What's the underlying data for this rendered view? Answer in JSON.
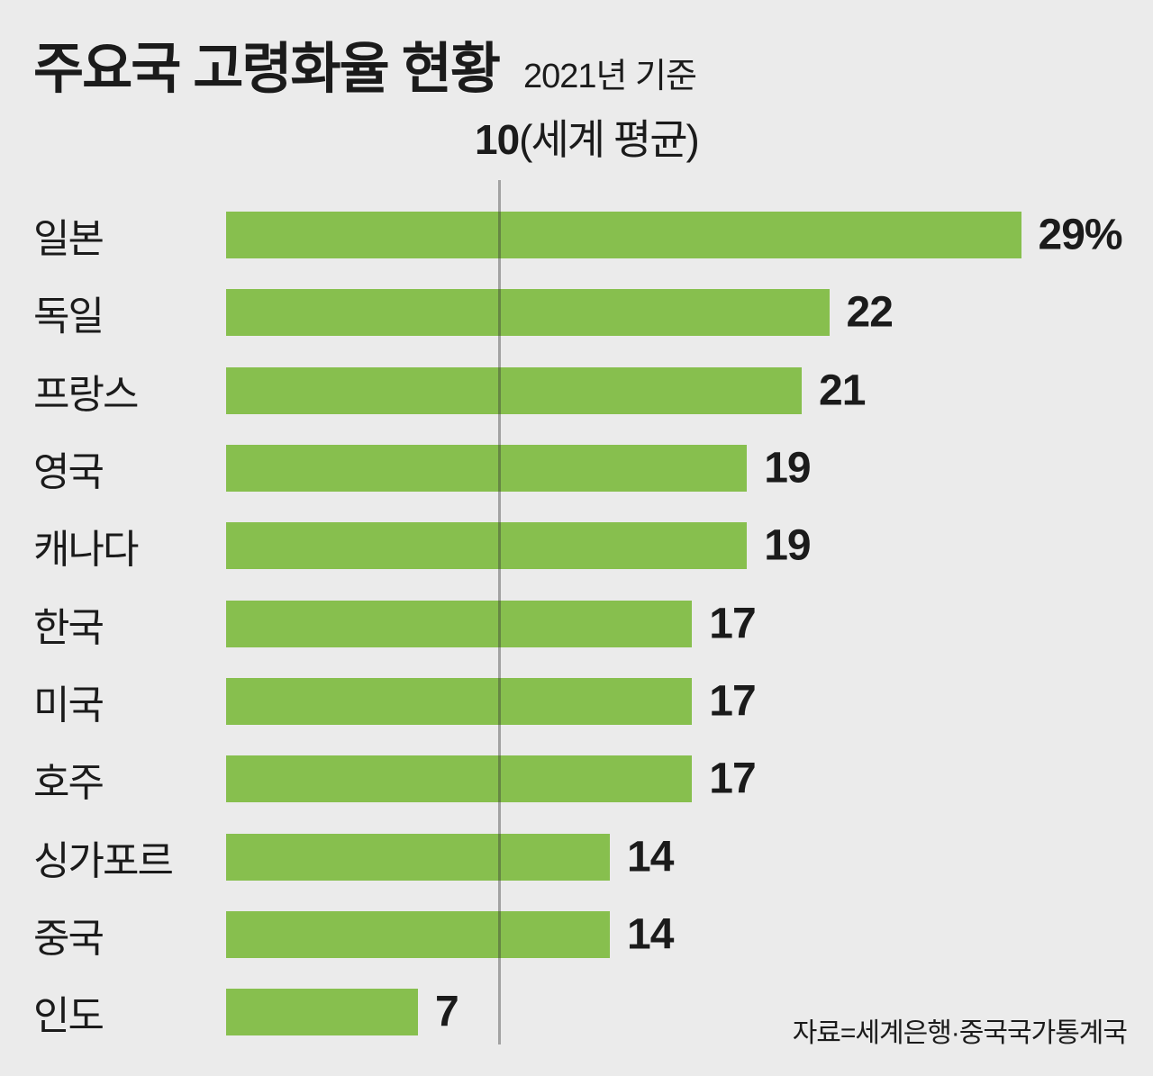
{
  "header": {
    "title": "주요국 고령화율 현황",
    "subtitle": "2021년 기준"
  },
  "average_marker": {
    "value_label": "10",
    "caption": "(세계 평균)"
  },
  "source": {
    "text": "자료=세계은행·중국국가통계국"
  },
  "colors": {
    "background": "#ebebeb",
    "bar_green": "#87bf4e",
    "text": "#1b1b1b",
    "reference_line_on_bg": "#9d9d9d"
  },
  "chart_data": {
    "type": "bar",
    "orientation": "horizontal",
    "title": "주요국 고령화율 현황",
    "subtitle": "2021년 기준",
    "unit": "%",
    "categories": [
      "일본",
      "독일",
      "프랑스",
      "영국",
      "캐나다",
      "한국",
      "미국",
      "호주",
      "싱가포르",
      "중국",
      "인도"
    ],
    "values": [
      29,
      22,
      21,
      19,
      19,
      17,
      17,
      17,
      14,
      14,
      7
    ],
    "value_labels": [
      "29%",
      "22",
      "21",
      "19",
      "19",
      "17",
      "17",
      "17",
      "14",
      "14",
      "7"
    ],
    "reference_line": {
      "value": 10,
      "label": "10(세계 평균)"
    },
    "xlim": [
      0,
      33.8
    ],
    "grid": false,
    "legend": false,
    "bar_color": "#87bf4e",
    "source": "자료=세계은행·중국국가통계국"
  }
}
